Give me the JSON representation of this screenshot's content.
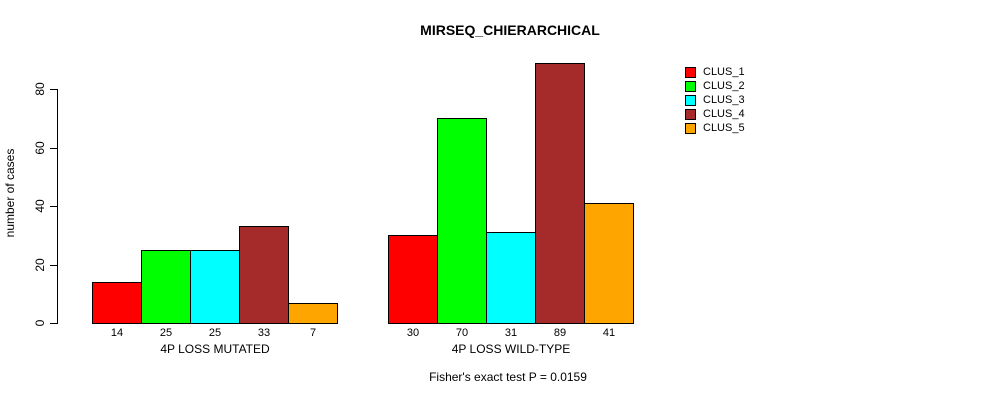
{
  "chart_data": {
    "type": "bar",
    "title": "MIRSEQ_CHIERARCHICAL",
    "ylabel": "number of cases",
    "xlabel": "",
    "annotation": "Fisher's exact test P = 0.0159",
    "categories": [
      "4P LOSS MUTATED",
      "4P LOSS WILD-TYPE"
    ],
    "series": [
      {
        "name": "CLUS_1",
        "color": "#FF0000",
        "values": [
          14,
          30
        ]
      },
      {
        "name": "CLUS_2",
        "color": "#00FF00",
        "values": [
          25,
          70
        ]
      },
      {
        "name": "CLUS_3",
        "color": "#00FFFF",
        "values": [
          25,
          31
        ]
      },
      {
        "name": "CLUS_4",
        "color": "#A52A2A",
        "values": [
          33,
          89
        ]
      },
      {
        "name": "CLUS_5",
        "color": "#FFA500",
        "values": [
          7,
          41
        ]
      }
    ],
    "yticks": [
      0,
      20,
      40,
      60,
      80
    ],
    "ylim": [
      0,
      89
    ],
    "grid": false,
    "legend_position": "right",
    "bar_border_color": "#000000",
    "background_color": "#FFFFFF",
    "text_color": "#000000"
  }
}
